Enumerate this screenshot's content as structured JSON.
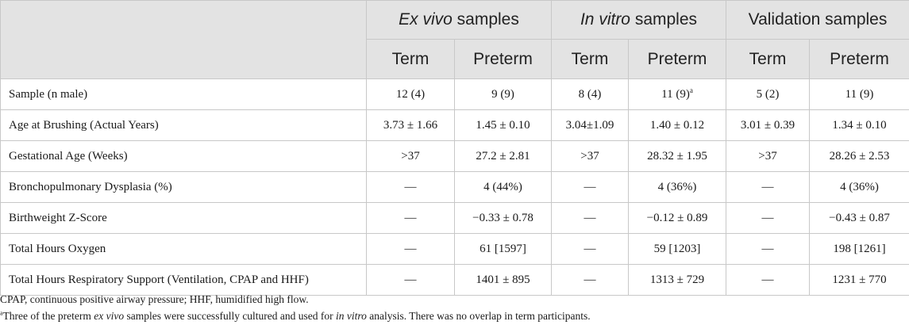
{
  "groups": [
    {
      "italic": "Ex vivo",
      "rest": " samples"
    },
    {
      "italic": "In vitro",
      "rest": " samples"
    },
    {
      "italic": "",
      "rest": "Validation samples"
    }
  ],
  "subheaders": [
    "Term",
    "Preterm",
    "Term",
    "Preterm",
    "Term",
    "Preterm"
  ],
  "rows": [
    {
      "label": "Sample (n male)",
      "cells": [
        "12 (4)",
        "9 (9)",
        "8 (4)",
        "11 (9)",
        "5 (2)",
        "11 (9)"
      ],
      "sup": "a"
    },
    {
      "label": "Age at Brushing (Actual Years)",
      "cells": [
        "3.73 ± 1.66",
        "1.45 ± 0.10",
        "3.04±1.09",
        "1.40 ± 0.12",
        "3.01 ± 0.39",
        "1.34 ± 0.10"
      ]
    },
    {
      "label": "Gestational Age (Weeks)",
      "cells": [
        ">37",
        "27.2 ± 2.81",
        ">37",
        "28.32 ± 1.95",
        ">37",
        "28.26 ± 2.53"
      ]
    },
    {
      "label": "Bronchopulmonary Dysplasia (%)",
      "cells": [
        "—",
        "4 (44%)",
        "—",
        "4 (36%)",
        "—",
        "4 (36%)"
      ]
    },
    {
      "label": "Birthweight Z-Score",
      "cells": [
        "—",
        "−0.33 ± 0.78",
        "—",
        "−0.12 ± 0.89",
        "—",
        "−0.43 ± 0.87"
      ]
    },
    {
      "label": "Total Hours Oxygen",
      "cells": [
        "—",
        "61 [1597]",
        "—",
        "59 [1203]",
        "—",
        "198 [1261]"
      ]
    },
    {
      "label": "Total Hours Respiratory Support (Ventilation, CPAP and HHF)",
      "cells": [
        "—",
        "1401 ± 895",
        "—",
        "1313 ± 729",
        "—",
        "1231 ± 770"
      ]
    }
  ],
  "footnotes": {
    "abbrev": "CPAP, continuous positive airway pressure; HHF, humidified high flow.",
    "a_mark": "a",
    "a_part1": "Three of the preterm ",
    "a_ital1": "ex vivo",
    "a_part2": " samples were successfully cultured and used for ",
    "a_ital2": "in vitro",
    "a_part3": " analysis. There was no overlap in term participants."
  }
}
